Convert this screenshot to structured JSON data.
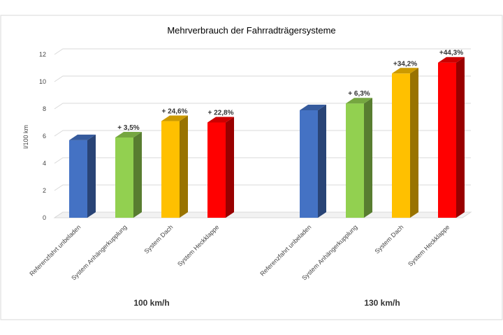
{
  "chart_data": {
    "type": "bar",
    "title": "Mehrverbrauch der Fahrradträgersysteme",
    "ylabel": "l/100 km",
    "ylim": [
      0,
      12
    ],
    "yticks": [
      0,
      2,
      4,
      6,
      8,
      10,
      12
    ],
    "grid": true,
    "style": "3d-columns",
    "groups": [
      {
        "label": "100 km/h",
        "categories": [
          "Referenzfahrt unbeladen",
          "System Anhängerkupplung",
          "System Dach",
          "System Heckklappe"
        ],
        "values": [
          5.7,
          5.9,
          7.1,
          7.0
        ],
        "data_labels": [
          "",
          "+ 3,5%",
          "+ 24,6%",
          "+ 22,8%"
        ]
      },
      {
        "label": "130 km/h",
        "categories": [
          "Referenzfahrt unbeladen",
          "System Anhängerkupplung",
          "System Dach",
          "System Heckklappe"
        ],
        "values": [
          7.9,
          8.4,
          10.6,
          11.4
        ],
        "data_labels": [
          "",
          "+ 6,3%",
          "+34,2%",
          "+44,3%"
        ]
      }
    ],
    "colors": {
      "Referenzfahrt unbeladen": "#4472c4",
      "System Anhängerkupplung": "#92d050",
      "System Dach": "#ffc000",
      "System Heckklappe": "#ff0000"
    }
  }
}
